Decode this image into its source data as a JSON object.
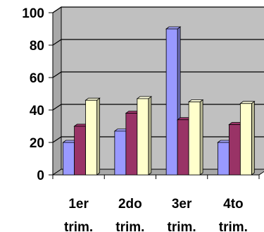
{
  "chart_data": {
    "type": "bar",
    "categories": [
      [
        "1er",
        "trim."
      ],
      [
        "2do",
        "trim."
      ],
      [
        "3er",
        "trim."
      ],
      [
        "4to",
        "trim."
      ]
    ],
    "series": [
      {
        "color": "#9999FF",
        "values": [
          20,
          27,
          90,
          20
        ]
      },
      {
        "color": "#993366",
        "values": [
          30,
          38,
          34,
          31
        ]
      },
      {
        "color": "#FFFFCC",
        "values": [
          46,
          47,
          45,
          44
        ]
      }
    ],
    "yticks": [
      0,
      20,
      40,
      60,
      80,
      100
    ],
    "ylim": [
      0,
      100
    ],
    "grid": true,
    "plot_background": "#C0C0C0",
    "legend": "none",
    "title": "",
    "xlabel": "",
    "ylabel": ""
  }
}
